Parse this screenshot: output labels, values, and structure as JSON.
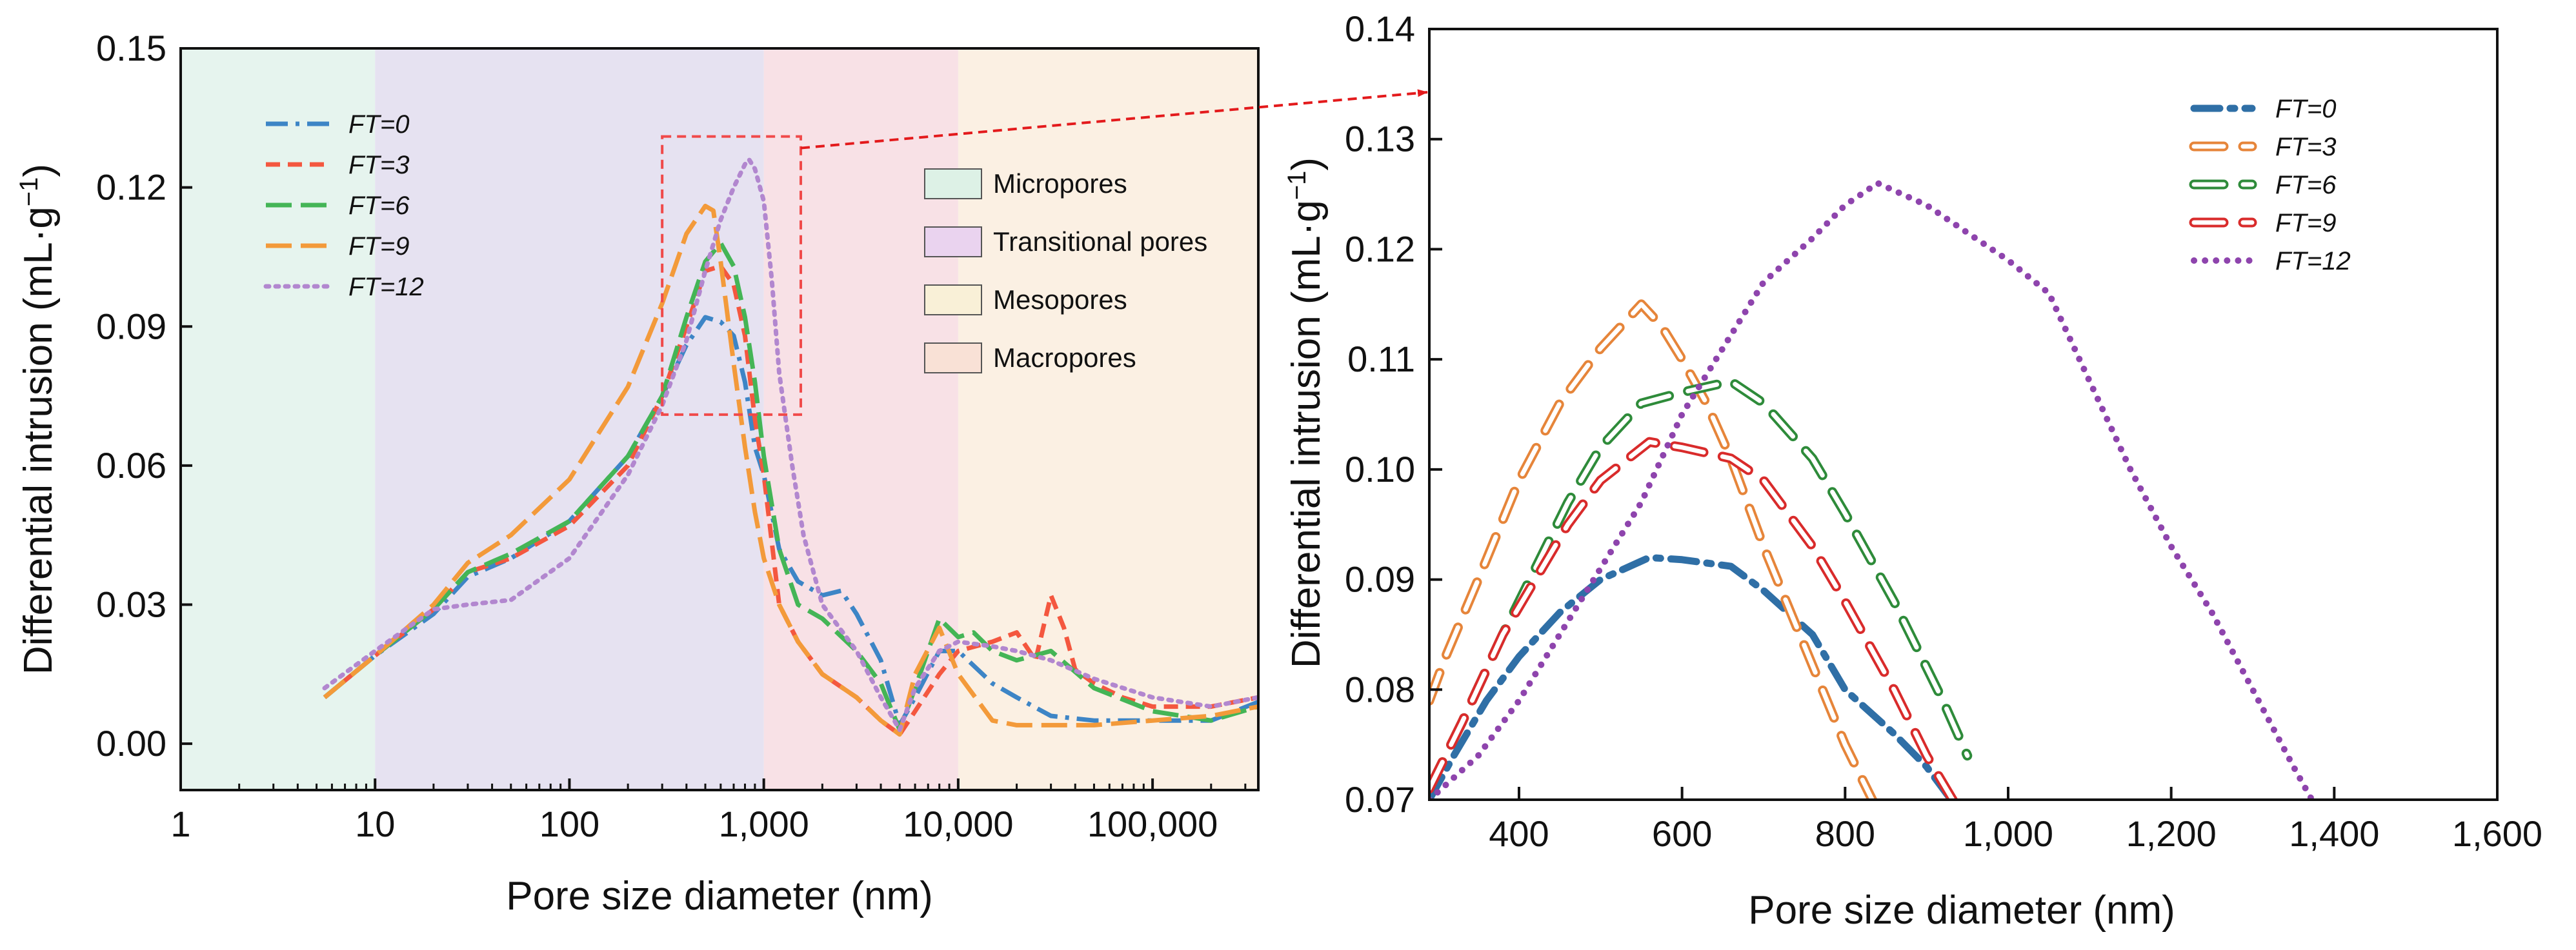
{
  "chart_data": [
    {
      "type": "line",
      "xscale": "log",
      "xlabel": "Pore size diameter (nm)",
      "ylabel_main": "Differential intrusion (mL·g",
      "ylabel_sup": "−1",
      "ylabel_end": ")",
      "xlim": [
        1,
        350000
      ],
      "ylim": [
        -0.01,
        0.15
      ],
      "xticks": [
        1,
        10,
        100,
        1000,
        10000,
        100000
      ],
      "xtick_labels": [
        "1",
        "10",
        "100",
        "1,000",
        "10,000",
        "100,000"
      ],
      "yticks": [
        0.0,
        0.03,
        0.06,
        0.09,
        0.12,
        0.15
      ],
      "ytick_labels": [
        "0.00",
        "0.03",
        "0.06",
        "0.09",
        "0.12",
        "0.15"
      ],
      "regions": [
        {
          "name": "Micropores",
          "from": 1,
          "to": 10,
          "color": "#e6f4ee"
        },
        {
          "name": "Transitional pores",
          "from": 10,
          "to": 1000,
          "color": "#e6e2f1"
        },
        {
          "name": "Mesopores",
          "from": 1000,
          "to": 10000,
          "color": "#f8e1e6"
        },
        {
          "name": "Macropores",
          "from": 10000,
          "to": 350000,
          "color": "#fbf0e3"
        }
      ],
      "region_legend": [
        {
          "name": "Micropores",
          "color": "#ddf1e6"
        },
        {
          "name": "Transitional pores",
          "color": "#ead3ef"
        },
        {
          "name": "Mesopores",
          "color": "#f9f0d7"
        },
        {
          "name": "Macropores",
          "color": "#f9e1d6"
        }
      ],
      "zoom_box": {
        "x": [
          300,
          1550
        ],
        "y": [
          0.071,
          0.131
        ]
      },
      "series": [
        {
          "name": "FT=0",
          "color": "#3d85c6",
          "dash": "dashdot",
          "x": [
            5.5,
            10,
            20,
            30,
            50,
            100,
            200,
            300,
            400,
            500,
            600,
            700,
            800,
            900,
            1000,
            1200,
            1500,
            2000,
            2500,
            3000,
            4000,
            5000,
            6000,
            8000,
            10000,
            15000,
            20000,
            30000,
            50000,
            100000,
            200000,
            350000
          ],
          "y": [
            0.01,
            0.019,
            0.028,
            0.036,
            0.04,
            0.048,
            0.062,
            0.075,
            0.086,
            0.092,
            0.091,
            0.088,
            0.078,
            0.064,
            0.058,
            0.042,
            0.035,
            0.032,
            0.033,
            0.028,
            0.018,
            0.004,
            0.01,
            0.02,
            0.02,
            0.013,
            0.01,
            0.006,
            0.005,
            0.005,
            0.005,
            0.009
          ]
        },
        {
          "name": "FT=3",
          "color": "#f4573f",
          "dash": "dash",
          "x": [
            5.5,
            10,
            20,
            30,
            50,
            100,
            200,
            300,
            400,
            500,
            600,
            700,
            800,
            900,
            1000,
            1200,
            1500,
            2000,
            3000,
            4000,
            5000,
            6000,
            8000,
            10000,
            15000,
            20000,
            25000,
            30000,
            35000,
            40000,
            50000,
            70000,
            100000,
            200000,
            350000
          ],
          "y": [
            0.01,
            0.019,
            0.029,
            0.037,
            0.04,
            0.047,
            0.06,
            0.075,
            0.09,
            0.102,
            0.103,
            0.099,
            0.088,
            0.07,
            0.058,
            0.03,
            0.022,
            0.015,
            0.01,
            0.005,
            0.002,
            0.007,
            0.015,
            0.02,
            0.022,
            0.024,
            0.018,
            0.032,
            0.025,
            0.016,
            0.013,
            0.01,
            0.008,
            0.008,
            0.01
          ]
        },
        {
          "name": "FT=6",
          "color": "#44b556",
          "dash": "longdash",
          "x": [
            5.5,
            10,
            20,
            30,
            50,
            100,
            200,
            300,
            400,
            500,
            600,
            700,
            800,
            900,
            1000,
            1200,
            1500,
            2000,
            3000,
            4000,
            5000,
            6000,
            8000,
            10000,
            12000,
            15000,
            20000,
            30000,
            50000,
            100000,
            200000,
            350000
          ],
          "y": [
            0.01,
            0.019,
            0.029,
            0.037,
            0.041,
            0.048,
            0.062,
            0.075,
            0.092,
            0.104,
            0.108,
            0.103,
            0.092,
            0.078,
            0.062,
            0.042,
            0.03,
            0.027,
            0.02,
            0.013,
            0.003,
            0.012,
            0.027,
            0.023,
            0.024,
            0.02,
            0.018,
            0.02,
            0.012,
            0.007,
            0.005,
            0.008
          ]
        },
        {
          "name": "FT=9",
          "color": "#f39a3a",
          "dash": "longdash",
          "x": [
            5.5,
            10,
            20,
            30,
            50,
            100,
            200,
            300,
            400,
            500,
            550,
            600,
            700,
            800,
            900,
            1000,
            1200,
            1500,
            2000,
            3000,
            4000,
            5000,
            6000,
            8000,
            10000,
            15000,
            20000,
            30000,
            50000,
            100000,
            200000,
            350000
          ],
          "y": [
            0.01,
            0.019,
            0.03,
            0.039,
            0.045,
            0.057,
            0.077,
            0.095,
            0.11,
            0.116,
            0.115,
            0.104,
            0.082,
            0.064,
            0.05,
            0.04,
            0.03,
            0.022,
            0.015,
            0.01,
            0.005,
            0.002,
            0.015,
            0.025,
            0.015,
            0.005,
            0.004,
            0.004,
            0.004,
            0.005,
            0.006,
            0.008
          ]
        },
        {
          "name": "FT=12",
          "color": "#b287cf",
          "dash": "dot",
          "x": [
            5.5,
            10,
            20,
            30,
            50,
            100,
            200,
            300,
            400,
            500,
            600,
            700,
            800,
            840,
            900,
            1000,
            1100,
            1200,
            1400,
            1600,
            2000,
            3000,
            4000,
            5000,
            6000,
            8000,
            10000,
            15000,
            20000,
            30000,
            50000,
            100000,
            200000,
            350000
          ],
          "y": [
            0.012,
            0.02,
            0.029,
            0.03,
            0.031,
            0.04,
            0.058,
            0.073,
            0.087,
            0.102,
            0.113,
            0.12,
            0.125,
            0.126,
            0.124,
            0.117,
            0.1,
            0.08,
            0.06,
            0.045,
            0.03,
            0.02,
            0.01,
            0.003,
            0.012,
            0.02,
            0.022,
            0.021,
            0.02,
            0.018,
            0.014,
            0.01,
            0.008,
            0.01
          ]
        }
      ]
    },
    {
      "type": "line",
      "xscale": "linear",
      "xlabel": "Pore size diameter (nm)",
      "ylabel_main": "Differential intrusion (mL·g",
      "ylabel_sup": "−1",
      "ylabel_end": ")",
      "xlim": [
        290,
        1600
      ],
      "ylim": [
        0.07,
        0.14
      ],
      "xticks": [
        400,
        600,
        800,
        1000,
        1200,
        1400,
        1600
      ],
      "xtick_labels": [
        "400",
        "600",
        "800",
        "1,000",
        "1,200",
        "1,400",
        "1,600"
      ],
      "yticks": [
        0.07,
        0.08,
        0.09,
        0.1,
        0.11,
        0.12,
        0.13,
        0.14
      ],
      "ytick_labels": [
        "0.07",
        "0.08",
        "0.09",
        "0.10",
        "0.11",
        "0.12",
        "0.13",
        "0.14"
      ],
      "series": [
        {
          "name": "FT=0",
          "color": "#2f6fa6",
          "style": "dashdot",
          "x": [
            290,
            320,
            360,
            400,
            450,
            500,
            560,
            600,
            660,
            700,
            760,
            800,
            860,
            900,
            940
          ],
          "y": [
            0.07,
            0.074,
            0.079,
            0.083,
            0.087,
            0.09,
            0.092,
            0.0918,
            0.0912,
            0.089,
            0.085,
            0.08,
            0.076,
            0.073,
            0.069
          ]
        },
        {
          "name": "FT=3",
          "color": "#e6853a",
          "style": "hollow",
          "x": [
            290,
            310,
            350,
            400,
            450,
            500,
            550,
            575,
            600,
            630,
            660,
            700,
            750,
            800,
            840
          ],
          "y": [
            0.079,
            0.083,
            0.09,
            0.099,
            0.106,
            0.111,
            0.115,
            0.113,
            0.11,
            0.106,
            0.101,
            0.093,
            0.084,
            0.075,
            0.069
          ]
        },
        {
          "name": "FT=6",
          "color": "#2e8b3a",
          "style": "hollow",
          "x": [
            290,
            330,
            380,
            420,
            460,
            500,
            550,
            600,
            660,
            700,
            760,
            800,
            860,
            920,
            950
          ],
          "y": [
            0.071,
            0.077,
            0.085,
            0.091,
            0.097,
            0.102,
            0.106,
            0.107,
            0.108,
            0.106,
            0.101,
            0.096,
            0.088,
            0.079,
            0.074
          ]
        },
        {
          "name": "FT=9",
          "color": "#d92b2b",
          "style": "hollow",
          "x": [
            290,
            330,
            380,
            420,
            460,
            500,
            560,
            600,
            660,
            700,
            760,
            800,
            860,
            900,
            940
          ],
          "y": [
            0.071,
            0.077,
            0.085,
            0.09,
            0.095,
            0.099,
            0.1025,
            0.102,
            0.101,
            0.099,
            0.093,
            0.088,
            0.08,
            0.074,
            0.069
          ]
        },
        {
          "name": "FT=12",
          "color": "#8e44ad",
          "style": "dot",
          "x": [
            290,
            350,
            400,
            450,
            500,
            550,
            600,
            650,
            700,
            760,
            800,
            840,
            900,
            960,
            1000,
            1050,
            1100,
            1150,
            1200,
            1250,
            1300,
            1350,
            1380
          ],
          "y": [
            0.07,
            0.074,
            0.079,
            0.085,
            0.091,
            0.097,
            0.105,
            0.111,
            0.117,
            0.121,
            0.124,
            0.126,
            0.124,
            0.121,
            0.119,
            0.116,
            0.108,
            0.1,
            0.093,
            0.087,
            0.08,
            0.073,
            0.069
          ]
        }
      ]
    }
  ]
}
